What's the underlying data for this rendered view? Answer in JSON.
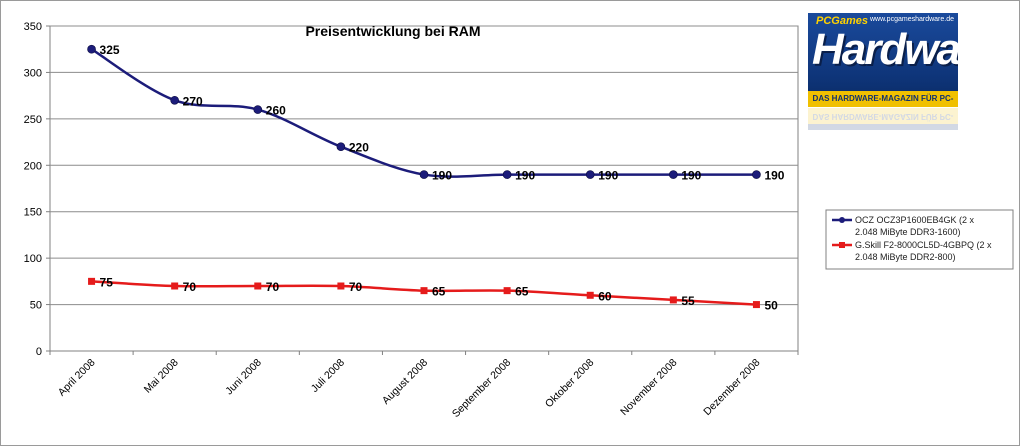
{
  "chart_data": {
    "type": "line",
    "title": "Preisentwicklung bei RAM",
    "categories": [
      "April 2008",
      "Mai 2008",
      "Juni 2008",
      "Juli 2008",
      "August 2008",
      "September 2008",
      "Oktober 2008",
      "November 2008",
      "Dezember 2008"
    ],
    "ylim": [
      0,
      350
    ],
    "yticks": [
      "0",
      "50",
      "100",
      "150",
      "200",
      "250",
      "300",
      "350"
    ],
    "grid": true,
    "legend_position": "right",
    "series": [
      {
        "name": "OCZ OCZ3P1600EB4GK (2 x 2.048 MiByte DDR3-1600)",
        "legend_lines": [
          "OCZ OCZ3P1600EB4GK (2 x",
          "2.048 MiByte DDR3-1600)"
        ],
        "values": [
          325,
          270,
          260,
          220,
          190,
          190,
          190,
          190,
          190
        ],
        "labels": [
          "325",
          "270",
          "260",
          "220",
          "190",
          "190",
          "190",
          "190",
          "190"
        ],
        "color": "#1c1c7a",
        "marker": "circle"
      },
      {
        "name": "G.Skill F2-8000CL5D-4GBPQ (2 x 2.048 MiByte DDR2-800)",
        "legend_lines": [
          "G.Skill F2-8000CL5D-4GBPQ (2 x",
          "2.048 MiByte DDR2-800)"
        ],
        "values": [
          75,
          70,
          70,
          70,
          65,
          65,
          60,
          55,
          50
        ],
        "labels": [
          "75",
          "70",
          "70",
          "70",
          "65",
          "65",
          "60",
          "55",
          "50"
        ],
        "color": "#e51b1b",
        "marker": "square"
      }
    ]
  },
  "logo": {
    "url": "www.pcgameshardware.de",
    "small": "PCGames",
    "main": "Hardware",
    "tagline": "DAS HARDWARE-MAGAZIN FÜR PC-SPIELER"
  }
}
